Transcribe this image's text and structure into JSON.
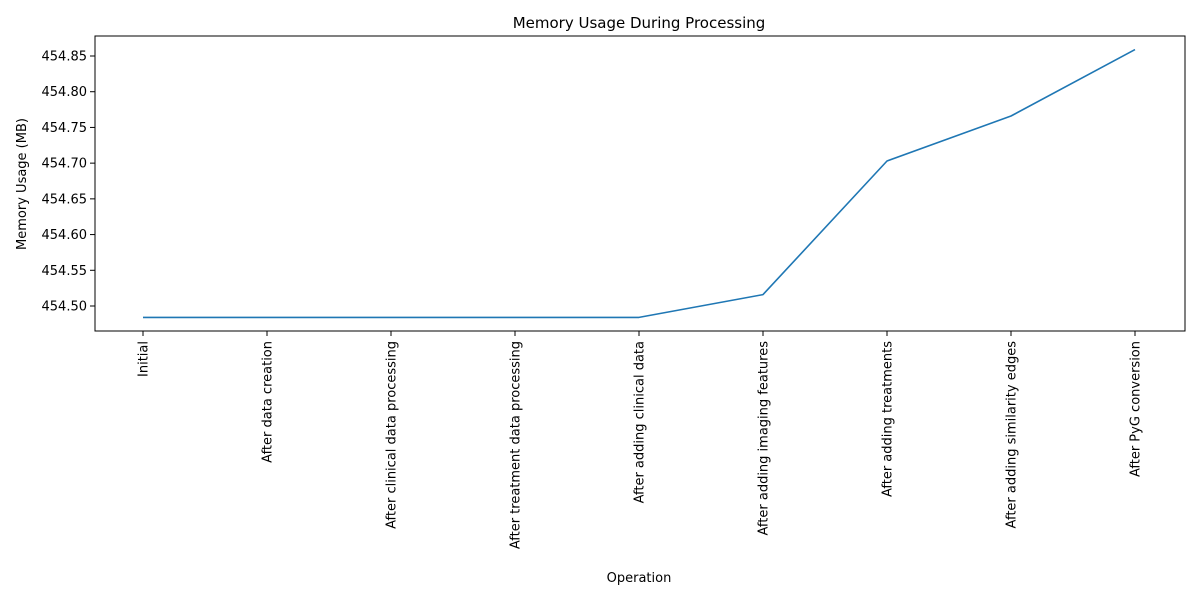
{
  "chart_data": {
    "type": "line",
    "title": "Memory Usage During Processing",
    "xlabel": "Operation",
    "ylabel": "Memory Usage (MB)",
    "categories": [
      "Initial",
      "After data creation",
      "After clinical data processing",
      "After treatment data processing",
      "After adding clinical data",
      "After adding imaging features",
      "After adding treatments",
      "After adding similarity edges",
      "After PyG conversion"
    ],
    "series": [
      {
        "values": [
          454.484,
          454.484,
          454.484,
          454.484,
          454.484,
          454.516,
          454.703,
          454.766,
          454.859
        ],
        "color": "#1f77b4"
      }
    ],
    "ylim": [
      454.465,
      454.878
    ],
    "yticks": [
      "454.50",
      "454.55",
      "454.60",
      "454.65",
      "454.70",
      "454.75",
      "454.80",
      "454.85"
    ],
    "grid": false,
    "legend": "none"
  }
}
